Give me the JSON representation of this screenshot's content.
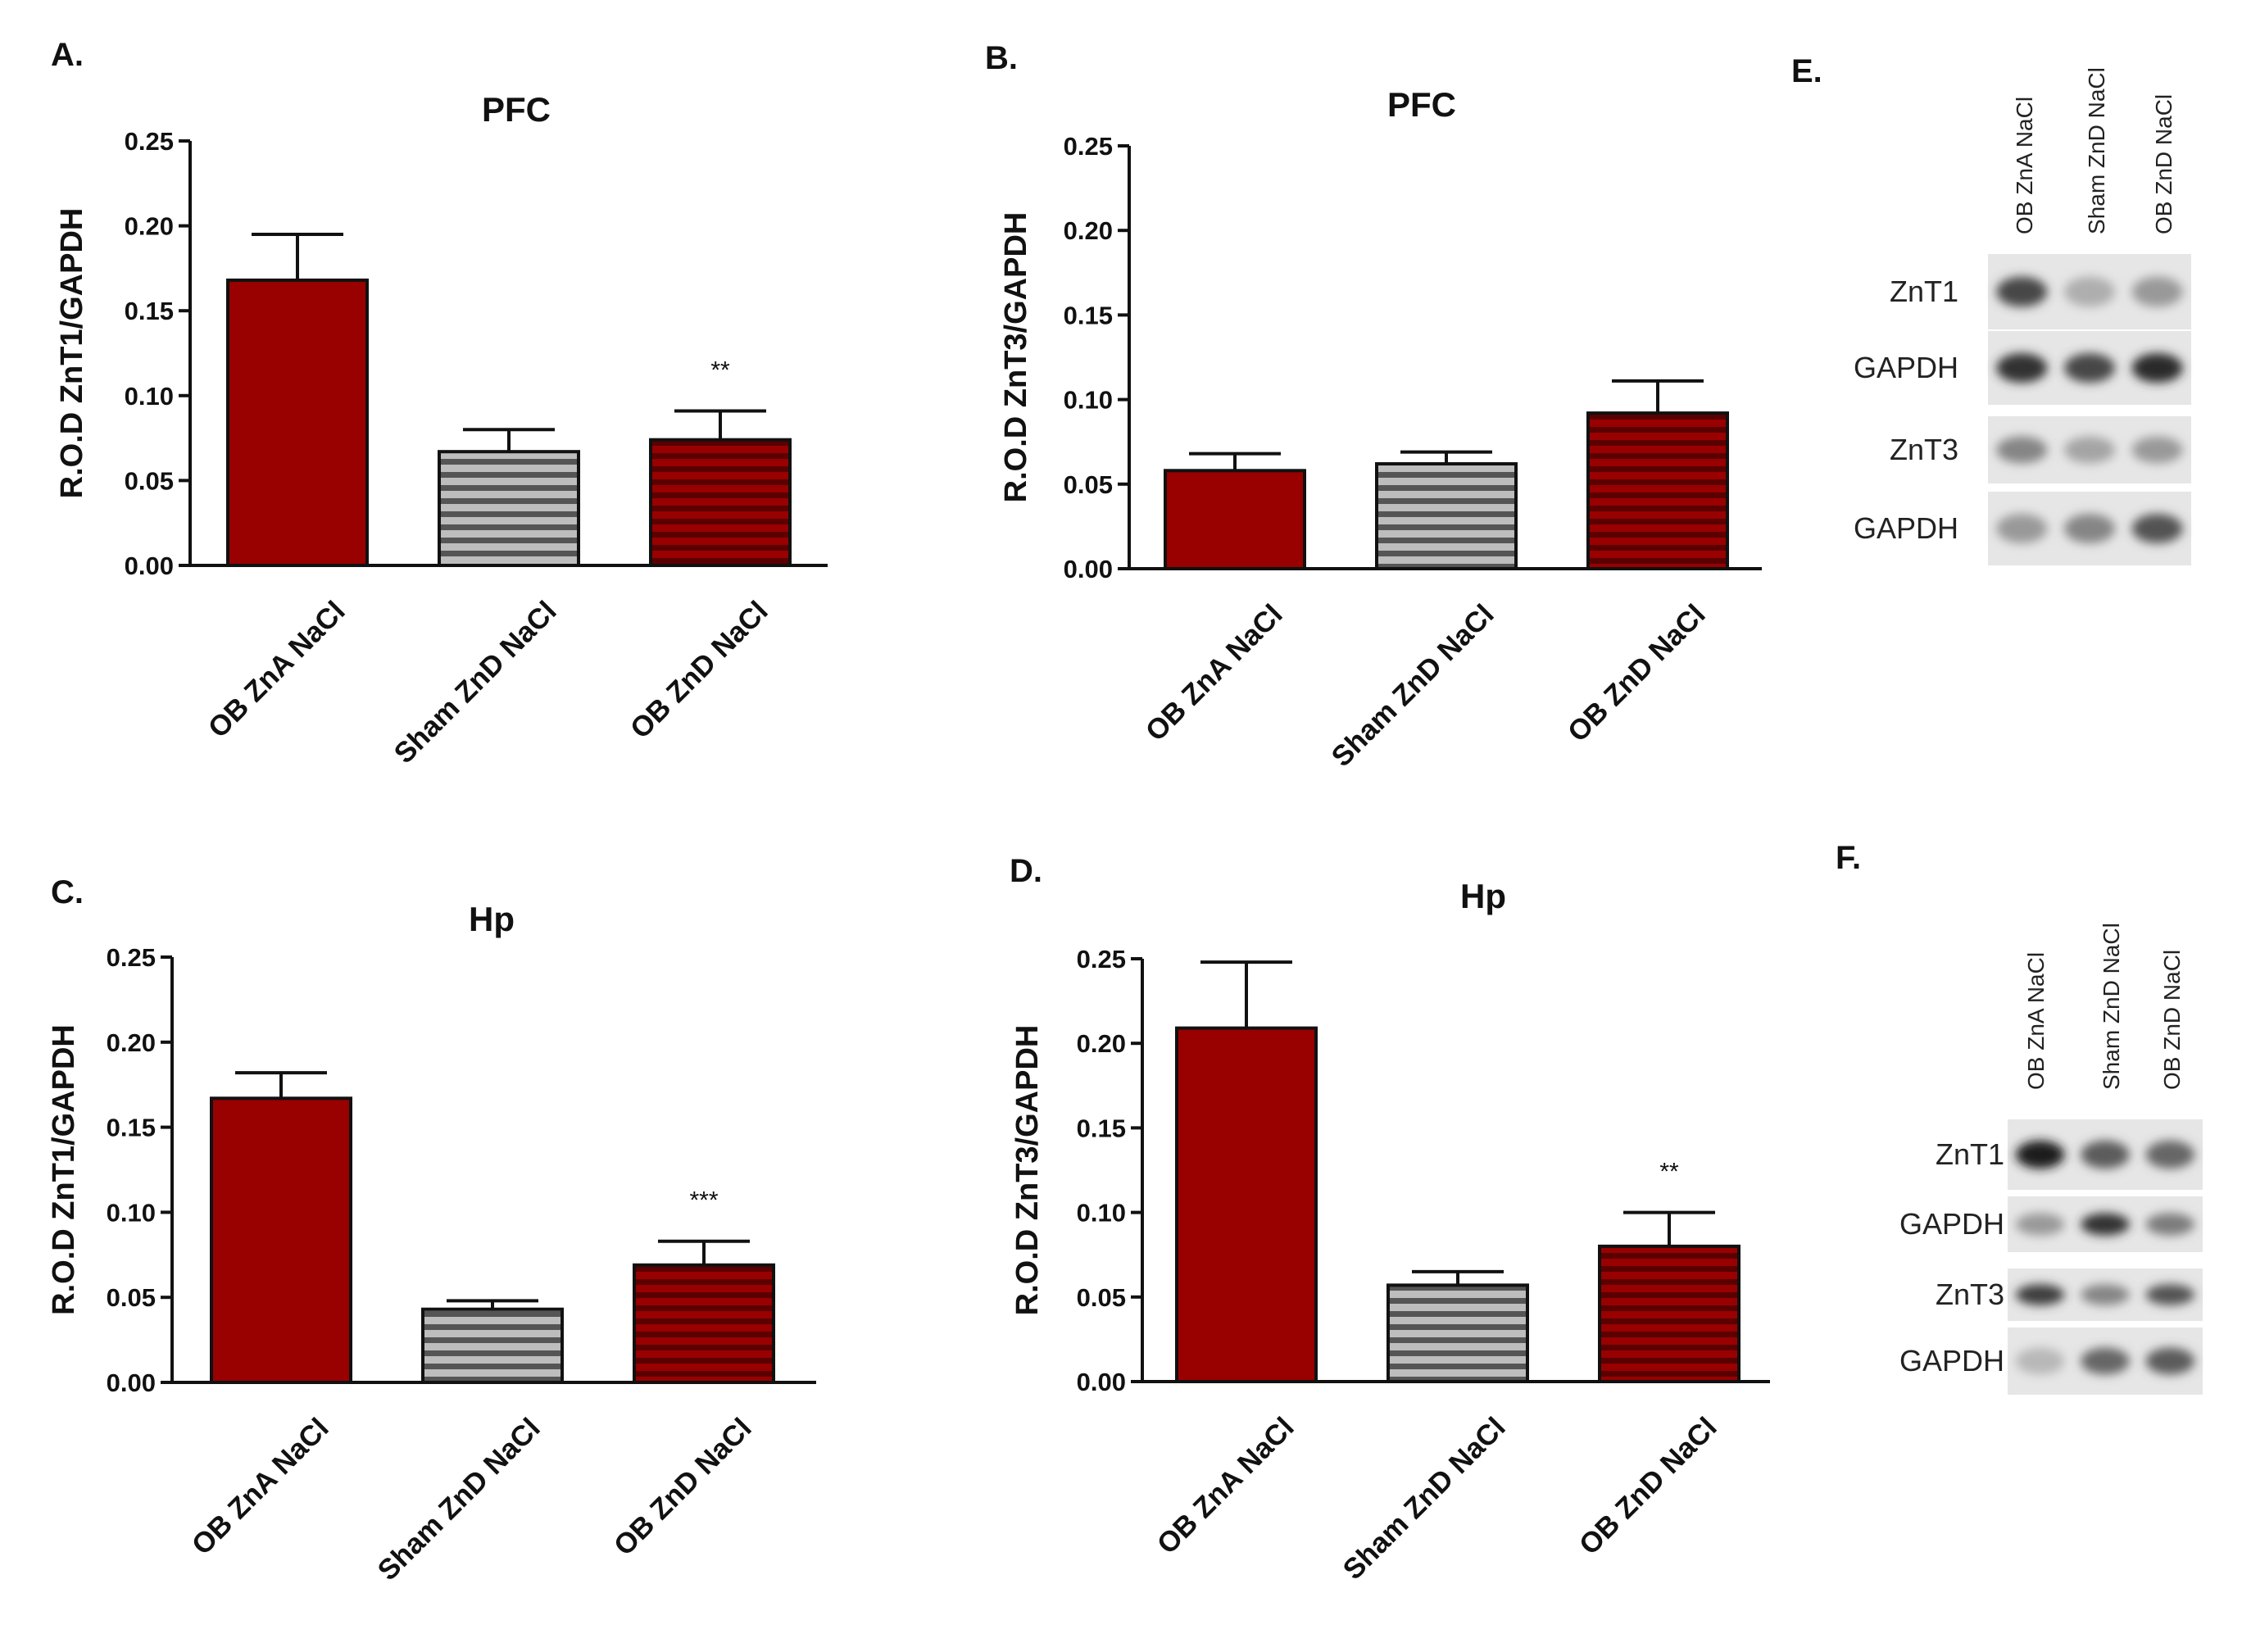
{
  "colors": {
    "red": "#990000",
    "gray": "#555555",
    "stripe_light": "#bdbdbd",
    "stripe_dark": "#5a0000"
  },
  "chart_data": [
    {
      "panel": "A.",
      "type": "bar",
      "title": "PFC",
      "ylabel": "R.O.D ZnT1/GAPDH",
      "xlabel": "",
      "ylim": [
        0,
        0.25
      ],
      "yticks": [
        "0.00",
        "0.05",
        "0.10",
        "0.15",
        "0.20",
        "0.25"
      ],
      "categories": [
        "OB ZnA NaCl",
        "Sham ZnD NaCl",
        "OB ZnD NaCl"
      ],
      "values": [
        0.168,
        0.067,
        0.074
      ],
      "errors": [
        0.027,
        0.013,
        0.017
      ],
      "significance": [
        "",
        "",
        "**"
      ],
      "fills": [
        "solid-red",
        "striped-gray",
        "striped-red"
      ]
    },
    {
      "panel": "B.",
      "type": "bar",
      "title": "PFC",
      "ylabel": "R.O.D ZnT3/GAPDH",
      "xlabel": "",
      "ylim": [
        0,
        0.25
      ],
      "yticks": [
        "0.00",
        "0.05",
        "0.10",
        "0.15",
        "0.20",
        "0.25"
      ],
      "categories": [
        "OB ZnA NaCl",
        "Sham ZnD NaCl",
        "OB ZnD NaCl"
      ],
      "values": [
        0.058,
        0.062,
        0.092
      ],
      "errors": [
        0.01,
        0.007,
        0.019
      ],
      "significance": [
        "",
        "",
        ""
      ],
      "fills": [
        "solid-red",
        "striped-gray",
        "striped-red"
      ]
    },
    {
      "panel": "C.",
      "type": "bar",
      "title": "Hp",
      "ylabel": "R.O.D ZnT1/GAPDH",
      "xlabel": "",
      "ylim": [
        0,
        0.25
      ],
      "yticks": [
        "0.00",
        "0.05",
        "0.10",
        "0.15",
        "0.20",
        "0.25"
      ],
      "categories": [
        "OB ZnA NaCl",
        "Sham ZnD NaCl",
        "OB ZnD NaCl"
      ],
      "values": [
        0.167,
        0.043,
        0.069
      ],
      "errors": [
        0.015,
        0.005,
        0.014
      ],
      "significance": [
        "",
        "",
        "***"
      ],
      "fills": [
        "solid-red",
        "striped-gray",
        "striped-red"
      ]
    },
    {
      "panel": "D.",
      "type": "bar",
      "title": "Hp",
      "ylabel": "R.O.D ZnT3/GAPDH",
      "xlabel": "",
      "ylim": [
        0,
        0.25
      ],
      "yticks": [
        "0.00",
        "0.05",
        "0.10",
        "0.15",
        "0.20",
        "0.25"
      ],
      "categories": [
        "OB ZnA NaCl",
        "Sham ZnD NaCl",
        "OB ZnD NaCl"
      ],
      "values": [
        0.209,
        0.057,
        0.08
      ],
      "errors": [
        0.039,
        0.008,
        0.02
      ],
      "significance": [
        "",
        "",
        "**"
      ],
      "fills": [
        "solid-red",
        "striped-gray",
        "striped-red"
      ]
    }
  ],
  "blots": [
    {
      "panel": "E.",
      "lanes": [
        "OB  ZnA  NaCl",
        "Sham ZnD  NaCl",
        "OB ZnD  NaCl"
      ],
      "rows": [
        {
          "label": "ZnT1",
          "intensities": [
            0.75,
            0.25,
            0.35
          ]
        },
        {
          "label": "GAPDH",
          "intensities": [
            0.85,
            0.75,
            0.9
          ]
        },
        {
          "label": "ZnT3",
          "intensities": [
            0.45,
            0.3,
            0.35
          ]
        },
        {
          "label": "GAPDH",
          "intensities": [
            0.35,
            0.45,
            0.7
          ]
        }
      ]
    },
    {
      "panel": "F.",
      "lanes": [
        "OB  ZnA  NaCl",
        "Sham ZnD  NaCl",
        "OB  ZnD  NaCl"
      ],
      "rows": [
        {
          "label": "ZnT1",
          "intensities": [
            0.95,
            0.65,
            0.6
          ]
        },
        {
          "label": "GAPDH",
          "intensities": [
            0.35,
            0.85,
            0.5
          ]
        },
        {
          "label": "ZnT3",
          "intensities": [
            0.8,
            0.45,
            0.7
          ]
        },
        {
          "label": "GAPDH",
          "intensities": [
            0.2,
            0.6,
            0.65
          ]
        }
      ]
    }
  ]
}
